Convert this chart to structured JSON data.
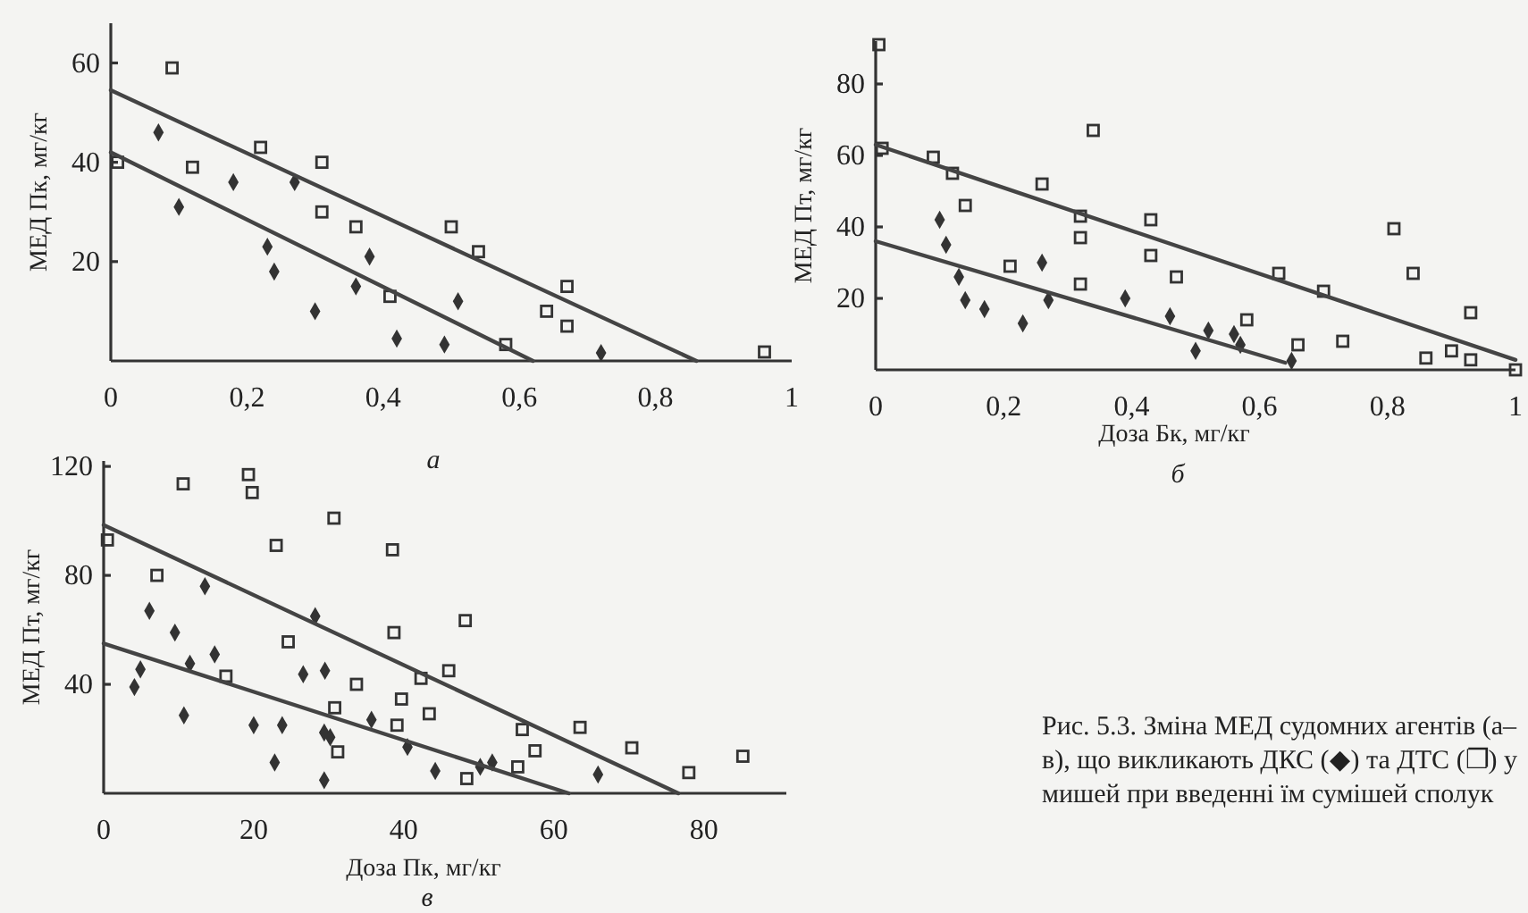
{
  "chart_data": [
    {
      "type": "scatter",
      "title": "а",
      "ylabel": "МЕД Пк, мг/кг",
      "xlim": [
        0,
        1
      ],
      "ylim": [
        0,
        68
      ],
      "xticks": [
        0,
        {
          "value": 0.2,
          "label": "0,2"
        },
        {
          "value": 0.4,
          "label": "0,4"
        },
        {
          "value": 0.6,
          "label": "0,6"
        },
        {
          "value": 0.8,
          "label": "0,8"
        },
        1
      ],
      "yticks": [
        20,
        40,
        60
      ],
      "series": [
        {
          "type": "scatter",
          "marker": "diamond",
          "color": "#333333",
          "x": [
            0.07,
            0.1,
            0.18,
            0.23,
            0.24,
            0.27,
            0.3,
            0.36,
            0.38,
            0.42,
            0.49,
            0.51,
            0.72
          ],
          "values": [
            46,
            31,
            36,
            23,
            18,
            36,
            10,
            15,
            21,
            4.5,
            3.3,
            12,
            1.6
          ]
        },
        {
          "type": "scatter",
          "marker": "square",
          "color": "#333333",
          "x": [
            0.01,
            0.09,
            0.12,
            0.22,
            0.31,
            0.31,
            0.36,
            0.41,
            0.5,
            0.54,
            0.58,
            0.64,
            0.67,
            0.67,
            0.96
          ],
          "values": [
            40,
            59,
            39,
            43,
            40,
            30,
            27,
            13,
            27,
            22,
            3.3,
            10,
            15,
            7,
            1.8
          ]
        },
        {
          "type": "line",
          "color": "#444444",
          "x": [
            0,
            0.62
          ],
          "values": [
            42,
            0
          ]
        },
        {
          "type": "line",
          "color": "#444444",
          "x": [
            0,
            0.86
          ],
          "values": [
            54.5,
            0
          ]
        }
      ]
    },
    {
      "type": "scatter",
      "title": "б",
      "xlabel": "Доза Бк, мг/кг",
      "ylabel": "МЕД Пт, мг/кг",
      "xlim": [
        0,
        1
      ],
      "ylim": [
        0,
        92
      ],
      "xticks": [
        0,
        {
          "value": 0.2,
          "label": "0,2"
        },
        {
          "value": 0.4,
          "label": "0,4"
        },
        {
          "value": 0.6,
          "label": "0,6"
        },
        {
          "value": 0.8,
          "label": "0,8"
        },
        1
      ],
      "yticks": [
        20,
        40,
        60,
        80
      ],
      "series": [
        {
          "type": "scatter",
          "marker": "diamond",
          "color": "#333333",
          "x": [
            0.1,
            0.11,
            0.13,
            0.14,
            0.17,
            0.23,
            0.26,
            0.27,
            0.39,
            0.46,
            0.5,
            0.52,
            0.56,
            0.57,
            0.65
          ],
          "values": [
            42,
            35,
            26,
            19.5,
            17,
            13,
            30,
            19.5,
            20,
            15,
            5.3,
            11,
            10,
            7,
            2.5
          ]
        },
        {
          "type": "scatter",
          "marker": "square",
          "color": "#333333",
          "x": [
            0.005,
            0.01,
            0.09,
            0.12,
            0.14,
            0.21,
            0.26,
            0.34,
            0.32,
            0.32,
            0.32,
            0.43,
            0.43,
            0.47,
            0.58,
            0.63,
            0.66,
            0.7,
            0.73,
            0.81,
            0.84,
            0.86,
            0.9,
            0.93,
            0.93,
            1.0
          ],
          "values": [
            91,
            62,
            59.5,
            55,
            46,
            29,
            52,
            67,
            43,
            37,
            24,
            42,
            32,
            26,
            14,
            27,
            7,
            22,
            8,
            39.5,
            27,
            3.3,
            5.3,
            16,
            2.8,
            0
          ]
        },
        {
          "type": "line",
          "color": "#444444",
          "x": [
            0,
            0.64
          ],
          "values": [
            36,
            2
          ]
        },
        {
          "type": "line",
          "color": "#444444",
          "x": [
            0,
            1.0
          ],
          "values": [
            63,
            2.8
          ]
        }
      ]
    },
    {
      "type": "scatter",
      "title": "в",
      "xlabel": "Доза Пк, мг/кг",
      "ylabel": "МЕД Пт, мг/кг",
      "xlim": [
        0,
        91
      ],
      "ylim": [
        0,
        122
      ],
      "xticks": [
        0,
        20,
        40,
        60,
        80
      ],
      "yticks": [
        40,
        80,
        120
      ],
      "series": [
        {
          "type": "scatter",
          "marker": "diamond",
          "color": "#333333",
          "x": [
            4.1,
            4.9,
            6.1,
            9.5,
            10.7,
            11.5,
            13.5,
            14.8,
            20,
            23.8,
            22.8,
            26.6,
            28.2,
            29.5,
            29.4,
            30.2,
            29.4,
            35.7,
            40.5,
            44.2,
            50.2,
            51.8,
            65.9
          ],
          "values": [
            39,
            45.5,
            67,
            59,
            28.6,
            47.6,
            76,
            51,
            25,
            25,
            11.3,
            43.7,
            65,
            45,
            22.3,
            20.6,
            4.8,
            27,
            17,
            8.2,
            9.7,
            11.3,
            6.9
          ]
        },
        {
          "type": "scatter",
          "marker": "square",
          "color": "#333333",
          "x": [
            0.5,
            10.6,
            19.3,
            19.8,
            30.7,
            23,
            38.5,
            7.1,
            38.7,
            24.6,
            48.2,
            16.3,
            33.7,
            39.7,
            39.1,
            42.3,
            43.4,
            46,
            30.8,
            31.2,
            55.8,
            57.5,
            55.2,
            48.4,
            63.5,
            70.4,
            78,
            85.2
          ],
          "values": [
            93,
            113.6,
            117,
            110.4,
            101,
            91,
            89.4,
            80,
            59,
            55.6,
            63.4,
            43,
            40,
            34.6,
            25,
            42.2,
            29.2,
            45,
            31.4,
            15.2,
            23.4,
            15.6,
            9.7,
            5.4,
            24.2,
            16.7,
            7.6,
            13.6
          ]
        },
        {
          "type": "line",
          "color": "#444444",
          "x": [
            0,
            62
          ],
          "values": [
            55,
            0
          ]
        },
        {
          "type": "line",
          "color": "#444444",
          "x": [
            0,
            76.6
          ],
          "values": [
            98.5,
            0
          ]
        }
      ]
    },
    {
      "type": "other",
      "title": "Рис. 5.3. Зміна МЕД судомних агентів (а–в), що викликають ДКС (◆) та ДТС (❐) у мишей при введенні їм сумішей сполук"
    }
  ]
}
